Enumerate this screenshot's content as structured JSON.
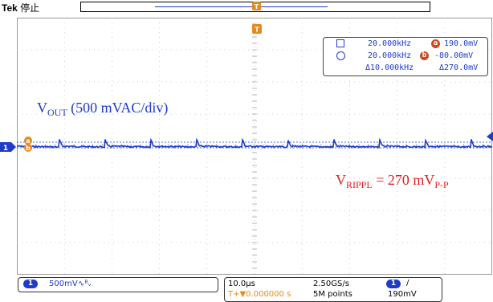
{
  "header": {
    "brand": "Tek",
    "state": "停止",
    "trigger_marker": "T"
  },
  "measurements": {
    "row1": {
      "freq": "20.000kHz",
      "cursor": "a",
      "value": "190.0mV"
    },
    "row2": {
      "freq": "20.000kHz",
      "cursor": "b",
      "value": "-80.00mV"
    },
    "row3": {
      "delta_freq": "Δ10.000kHz",
      "delta_value": "Δ270.0mV"
    }
  },
  "annotations": {
    "vout_main": "V",
    "vout_sub": "OUT",
    "vout_rest": " (500 mVAC/div)",
    "vripple_main": "V",
    "vripple_sub": "RIPPL",
    "vripple_mid": " = 270 mV",
    "vripple_sub2": "P-P"
  },
  "markers": {
    "channel": "1",
    "cursor_a": "a",
    "cursor_b": "b"
  },
  "footer": {
    "channel": "1",
    "scale": "500mV",
    "coupling": "∿ᴮᵥ",
    "timebase": "10.0µs",
    "trigger_pos": "T+▼0.000000 s",
    "sample_rate": "2.50GS/s",
    "record_length": "5M points",
    "trig_channel": "1",
    "trig_slope": "/",
    "trig_level": "190mV"
  },
  "colors": {
    "trace": "#1e3cc8",
    "annotation_red": "#e0201e",
    "cursor_orange": "#e58a1e",
    "cursor_badge": "#c84a1e"
  }
}
